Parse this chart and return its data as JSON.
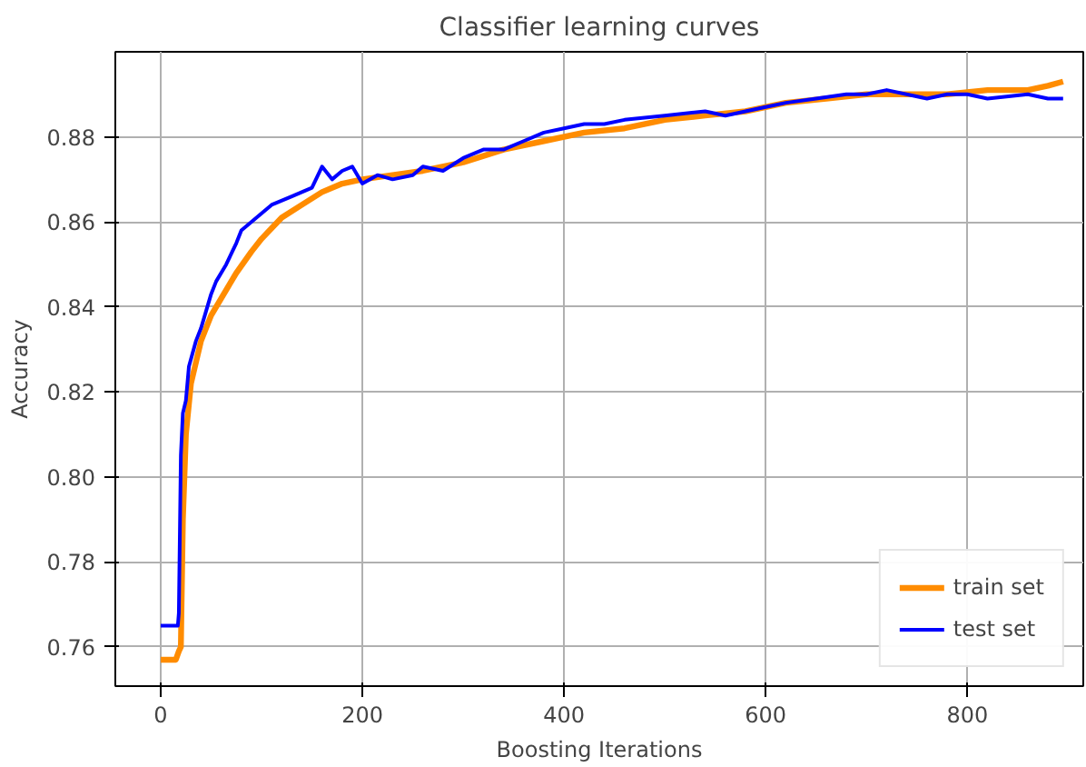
{
  "chart_data": {
    "type": "line",
    "title": "Classifier learning curves",
    "xlabel": "Boosting Iterations",
    "ylabel": "Accuracy",
    "xlim": [
      -45,
      915
    ],
    "ylim": [
      0.7508,
      0.9
    ],
    "xticks": [
      0,
      200,
      400,
      600,
      800
    ],
    "yticks": [
      0.76,
      0.78,
      {
        "value": 0.8,
        "label": "0.80"
      },
      0.82,
      0.84,
      0.86,
      0.88
    ],
    "grid": true,
    "legend": "bottom right",
    "line_style": "solid",
    "series": [
      {
        "name": "train set",
        "color": "#ff8c00",
        "x": [
          0,
          15,
          18,
          20,
          22,
          25,
          30,
          40,
          50,
          60,
          75,
          90,
          100,
          120,
          140,
          160,
          180,
          200,
          230,
          260,
          300,
          340,
          380,
          420,
          460,
          500,
          540,
          580,
          620,
          660,
          700,
          740,
          780,
          820,
          860,
          880,
          895
        ],
        "values": [
          0.757,
          0.757,
          0.759,
          0.76,
          0.79,
          0.81,
          0.822,
          0.832,
          0.838,
          0.842,
          0.848,
          0.853,
          0.856,
          0.861,
          0.864,
          0.867,
          0.869,
          0.87,
          0.871,
          0.872,
          0.874,
          0.877,
          0.879,
          0.881,
          0.882,
          0.884,
          0.885,
          0.886,
          0.888,
          0.889,
          0.89,
          0.89,
          0.89,
          0.891,
          0.891,
          0.892,
          0.893
        ]
      },
      {
        "name": "test set",
        "color": "#0000ff",
        "x": [
          0,
          17,
          18,
          20,
          22,
          25,
          28,
          35,
          40,
          50,
          55,
          65,
          75,
          80,
          95,
          110,
          130,
          150,
          160,
          170,
          180,
          190,
          200,
          215,
          230,
          250,
          260,
          280,
          300,
          320,
          340,
          360,
          380,
          400,
          420,
          440,
          460,
          500,
          540,
          560,
          600,
          620,
          650,
          680,
          700,
          720,
          760,
          780,
          800,
          820,
          860,
          880,
          895
        ],
        "values": [
          0.765,
          0.765,
          0.768,
          0.805,
          0.815,
          0.818,
          0.826,
          0.832,
          0.835,
          0.843,
          0.846,
          0.85,
          0.855,
          0.858,
          0.861,
          0.864,
          0.866,
          0.868,
          0.873,
          0.87,
          0.872,
          0.873,
          0.869,
          0.871,
          0.87,
          0.871,
          0.873,
          0.872,
          0.875,
          0.877,
          0.877,
          0.879,
          0.881,
          0.882,
          0.883,
          0.883,
          0.884,
          0.885,
          0.886,
          0.885,
          0.887,
          0.888,
          0.889,
          0.89,
          0.89,
          0.891,
          0.889,
          0.89,
          0.89,
          0.889,
          0.89,
          0.889,
          0.889
        ]
      }
    ]
  }
}
